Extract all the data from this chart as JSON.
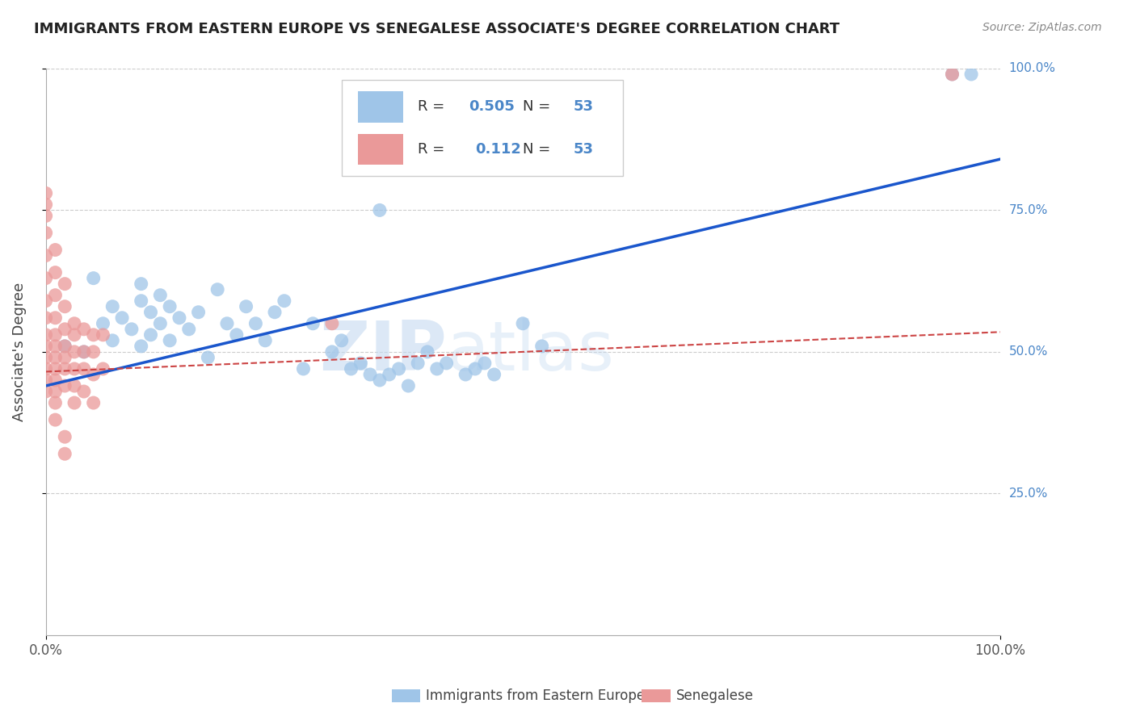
{
  "title": "IMMIGRANTS FROM EASTERN EUROPE VS SENEGALESE ASSOCIATE'S DEGREE CORRELATION CHART",
  "source": "Source: ZipAtlas.com",
  "ylabel": "Associate's Degree",
  "R_blue": 0.505,
  "R_pink": 0.112,
  "N": 53,
  "xlim": [
    0.0,
    1.0
  ],
  "ylim": [
    0.0,
    1.0
  ],
  "watermark_zip": "ZIP",
  "watermark_atlas": "atlas",
  "background_color": "#ffffff",
  "blue_color": "#9fc5e8",
  "pink_color": "#ea9999",
  "blue_line_color": "#1a56cc",
  "pink_line_color": "#cc4444",
  "right_axis_color": "#4a86c8",
  "grid_color": "#cccccc",
  "blue_line_start_y": 0.44,
  "blue_line_end_y": 0.84,
  "pink_line_start_y": 0.465,
  "pink_line_end_y": 0.535,
  "blue_scatter_x": [
    0.02,
    0.04,
    0.05,
    0.06,
    0.07,
    0.07,
    0.08,
    0.09,
    0.1,
    0.1,
    0.1,
    0.11,
    0.11,
    0.12,
    0.12,
    0.13,
    0.13,
    0.14,
    0.15,
    0.16,
    0.17,
    0.18,
    0.19,
    0.2,
    0.21,
    0.22,
    0.23,
    0.24,
    0.25,
    0.27,
    0.28,
    0.3,
    0.31,
    0.32,
    0.33,
    0.34,
    0.35,
    0.36,
    0.37,
    0.38,
    0.39,
    0.4,
    0.41,
    0.42,
    0.44,
    0.45,
    0.46,
    0.47,
    0.5,
    0.52,
    0.35,
    0.95,
    0.97
  ],
  "blue_scatter_y": [
    0.51,
    0.5,
    0.63,
    0.55,
    0.52,
    0.58,
    0.56,
    0.54,
    0.51,
    0.59,
    0.62,
    0.53,
    0.57,
    0.55,
    0.6,
    0.52,
    0.58,
    0.56,
    0.54,
    0.57,
    0.49,
    0.61,
    0.55,
    0.53,
    0.58,
    0.55,
    0.52,
    0.57,
    0.59,
    0.47,
    0.55,
    0.5,
    0.52,
    0.47,
    0.48,
    0.46,
    0.45,
    0.46,
    0.47,
    0.44,
    0.48,
    0.5,
    0.47,
    0.48,
    0.46,
    0.47,
    0.48,
    0.46,
    0.55,
    0.51,
    0.75,
    0.99,
    0.99
  ],
  "pink_scatter_x": [
    0.0,
    0.0,
    0.0,
    0.0,
    0.0,
    0.0,
    0.0,
    0.0,
    0.0,
    0.0,
    0.0,
    0.0,
    0.0,
    0.0,
    0.01,
    0.01,
    0.01,
    0.01,
    0.01,
    0.01,
    0.01,
    0.01,
    0.01,
    0.01,
    0.01,
    0.01,
    0.02,
    0.02,
    0.02,
    0.02,
    0.02,
    0.02,
    0.02,
    0.02,
    0.02,
    0.03,
    0.03,
    0.03,
    0.03,
    0.03,
    0.03,
    0.04,
    0.04,
    0.04,
    0.04,
    0.05,
    0.05,
    0.05,
    0.05,
    0.06,
    0.06,
    0.3,
    0.95
  ],
  "pink_scatter_y": [
    0.78,
    0.76,
    0.74,
    0.71,
    0.67,
    0.63,
    0.59,
    0.56,
    0.53,
    0.51,
    0.49,
    0.47,
    0.45,
    0.43,
    0.68,
    0.64,
    0.6,
    0.56,
    0.53,
    0.51,
    0.49,
    0.47,
    0.45,
    0.43,
    0.41,
    0.38,
    0.62,
    0.58,
    0.54,
    0.51,
    0.49,
    0.47,
    0.44,
    0.32,
    0.35,
    0.55,
    0.53,
    0.5,
    0.47,
    0.44,
    0.41,
    0.54,
    0.5,
    0.47,
    0.43,
    0.53,
    0.5,
    0.46,
    0.41,
    0.53,
    0.47,
    0.55,
    0.99
  ]
}
